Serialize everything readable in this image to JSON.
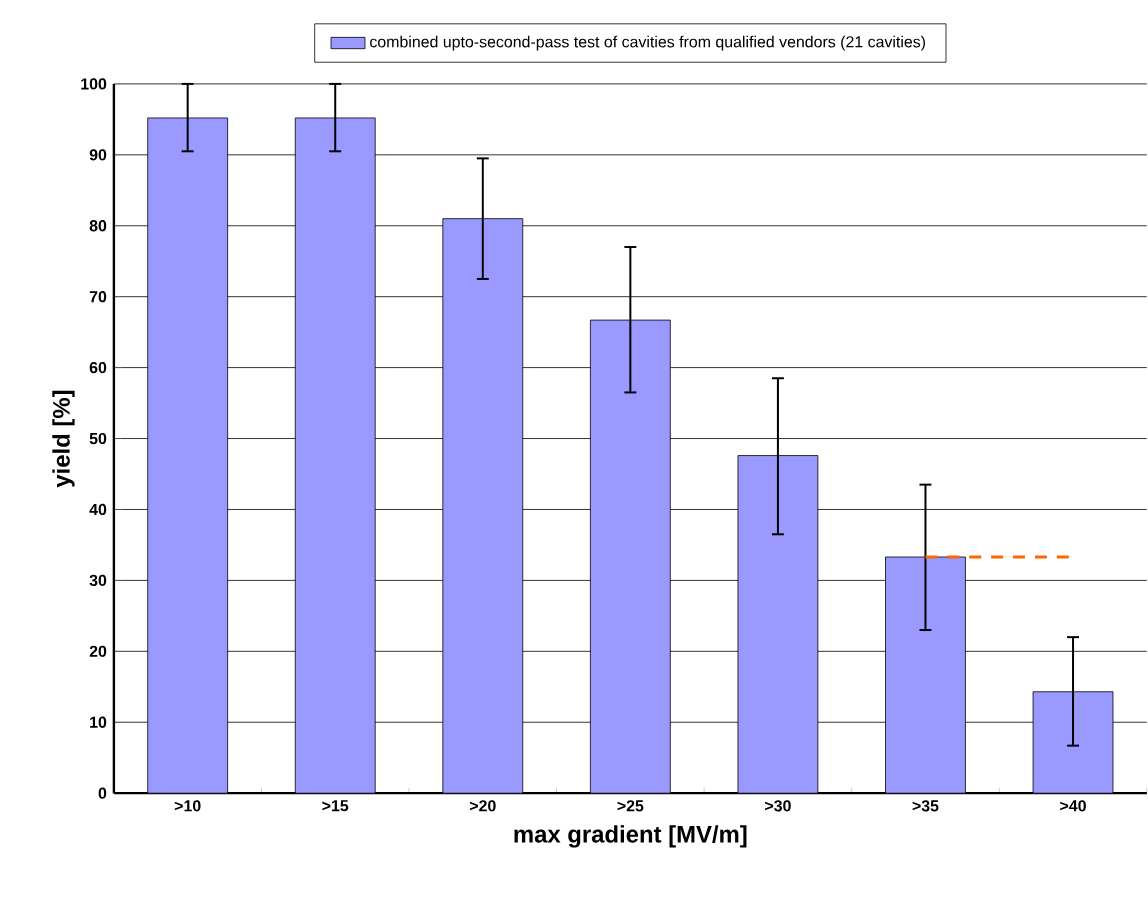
{
  "chart_data": {
    "type": "bar",
    "xlabel": "max gradient [MV/m]",
    "ylabel": "yield [%]",
    "categories": [
      ">10",
      ">15",
      ">20",
      ">25",
      ">30",
      ">35",
      ">40"
    ],
    "series": [
      {
        "name": "combined upto-second-pass test of cavities from qualified vendors (21 cavities)",
        "color": "#9999ff",
        "values": [
          95.2,
          95.2,
          81.0,
          66.7,
          47.6,
          33.3,
          14.3
        ],
        "errors": [
          [
            90.5,
            100
          ],
          [
            90.5,
            100
          ],
          [
            72.5,
            89.5
          ],
          [
            56.5,
            77
          ],
          [
            36.5,
            58.5
          ],
          [
            23,
            43.5
          ],
          [
            6.7,
            22
          ]
        ]
      },
      {
        "type": "line",
        "color": "#ff6600",
        "line_style": "dashed",
        "marker": "none",
        "values": [
          null,
          null,
          null,
          null,
          null,
          33.3,
          33.3
        ]
      }
    ],
    "ylim": [
      0,
      100
    ],
    "yticks": [
      0,
      10,
      20,
      30,
      40,
      50,
      60,
      70,
      80,
      90,
      100
    ],
    "grid": "y",
    "legend": "top"
  }
}
